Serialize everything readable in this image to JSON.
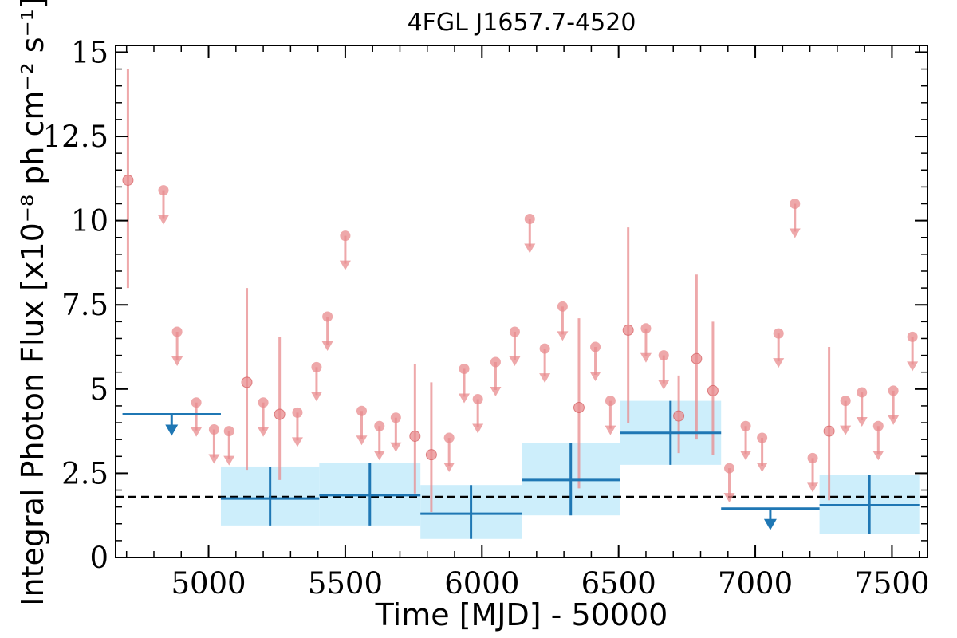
{
  "chart_data": {
    "type": "scatter",
    "title": "4FGL J1657.7-4520",
    "xlabel": "Time [MJD] - 50000",
    "ylabel": "Integral Photon Flux [x10⁻⁸ ph cm⁻² s⁻¹]",
    "xlim": [
      4660,
      7630
    ],
    "ylim": [
      0,
      15.2
    ],
    "xticks": [
      5000,
      5500,
      6000,
      6500,
      7000,
      7500
    ],
    "yticks": [
      0,
      2.5,
      5,
      7.5,
      10,
      12.5,
      15
    ],
    "ytick_labels": [
      "0",
      "2.5",
      "5",
      "7.5",
      "10",
      "12.5",
      "15"
    ],
    "grid": false,
    "reference_line": {
      "y": 1.8,
      "style": "dashed",
      "color": "#000000"
    },
    "colors": {
      "short_bins": "#e88b8d",
      "long_bins": "#1f77b4",
      "long_band": "#cdeefb"
    },
    "series": [
      {
        "points": [
          {
            "x": 4705,
            "y": 11.2,
            "ylo": 8.0,
            "yhi": 14.5
          },
          {
            "x": 5140,
            "y": 5.2,
            "ylo": 2.6,
            "yhi": 8.0
          },
          {
            "x": 5260,
            "y": 4.25,
            "ylo": 2.3,
            "yhi": 6.55
          },
          {
            "x": 5755,
            "y": 3.6,
            "ylo": 1.9,
            "yhi": 5.75
          },
          {
            "x": 5815,
            "y": 3.05,
            "ylo": 1.35,
            "yhi": 5.2
          },
          {
            "x": 6355,
            "y": 4.45,
            "ylo": 2.05,
            "yhi": 7.1
          },
          {
            "x": 6535,
            "y": 6.75,
            "ylo": 4.0,
            "yhi": 9.8
          },
          {
            "x": 6720,
            "y": 4.2,
            "ylo": 3.1,
            "yhi": 5.4
          },
          {
            "x": 6785,
            "y": 5.9,
            "ylo": 3.5,
            "yhi": 8.4
          },
          {
            "x": 6845,
            "y": 4.95,
            "ylo": 3.05,
            "yhi": 7.0
          },
          {
            "x": 7270,
            "y": 3.75,
            "ylo": 1.7,
            "yhi": 6.25
          }
        ],
        "upper_limits": [
          {
            "x": 4835,
            "y": 10.9
          },
          {
            "x": 4885,
            "y": 6.7
          },
          {
            "x": 4955,
            "y": 4.6
          },
          {
            "x": 5020,
            "y": 3.8
          },
          {
            "x": 5075,
            "y": 3.75
          },
          {
            "x": 5200,
            "y": 4.6
          },
          {
            "x": 5325,
            "y": 4.3
          },
          {
            "x": 5395,
            "y": 5.65
          },
          {
            "x": 5435,
            "y": 7.15
          },
          {
            "x": 5500,
            "y": 9.55
          },
          {
            "x": 5560,
            "y": 4.35
          },
          {
            "x": 5625,
            "y": 3.9
          },
          {
            "x": 5685,
            "y": 4.15
          },
          {
            "x": 5880,
            "y": 3.55
          },
          {
            "x": 5935,
            "y": 5.6
          },
          {
            "x": 5985,
            "y": 4.7
          },
          {
            "x": 6050,
            "y": 5.8
          },
          {
            "x": 6120,
            "y": 6.7
          },
          {
            "x": 6175,
            "y": 10.05
          },
          {
            "x": 6230,
            "y": 6.2
          },
          {
            "x": 6295,
            "y": 7.45
          },
          {
            "x": 6415,
            "y": 6.25
          },
          {
            "x": 6470,
            "y": 4.65
          },
          {
            "x": 6600,
            "y": 6.8
          },
          {
            "x": 6665,
            "y": 6.0
          },
          {
            "x": 6905,
            "y": 2.65
          },
          {
            "x": 6965,
            "y": 3.9
          },
          {
            "x": 7025,
            "y": 3.55
          },
          {
            "x": 7085,
            "y": 6.65
          },
          {
            "x": 7145,
            "y": 10.5
          },
          {
            "x": 7210,
            "y": 2.95
          },
          {
            "x": 7330,
            "y": 4.65
          },
          {
            "x": 7390,
            "y": 4.9
          },
          {
            "x": 7450,
            "y": 3.9
          },
          {
            "x": 7505,
            "y": 4.95
          },
          {
            "x": 7575,
            "y": 6.55
          }
        ]
      },
      {
        "bins": [
          {
            "x0": 5045,
            "x1": 5405,
            "y": 1.75,
            "ylo": 0.95,
            "yhi": 2.7
          },
          {
            "x0": 5405,
            "x1": 5775,
            "y": 1.85,
            "ylo": 0.95,
            "yhi": 2.8
          },
          {
            "x0": 5775,
            "x1": 6145,
            "y": 1.3,
            "ylo": 0.55,
            "yhi": 2.15
          },
          {
            "x0": 6145,
            "x1": 6505,
            "y": 2.3,
            "ylo": 1.25,
            "yhi": 3.4
          },
          {
            "x0": 6505,
            "x1": 6875,
            "y": 3.7,
            "ylo": 2.75,
            "yhi": 4.65
          },
          {
            "x0": 7235,
            "x1": 7600,
            "y": 1.55,
            "ylo": 0.7,
            "yhi": 2.45
          }
        ],
        "upper_limits": [
          {
            "x0": 4685,
            "x1": 5045,
            "y": 4.25
          },
          {
            "x0": 6875,
            "x1": 7235,
            "y": 1.45
          }
        ]
      }
    ]
  }
}
